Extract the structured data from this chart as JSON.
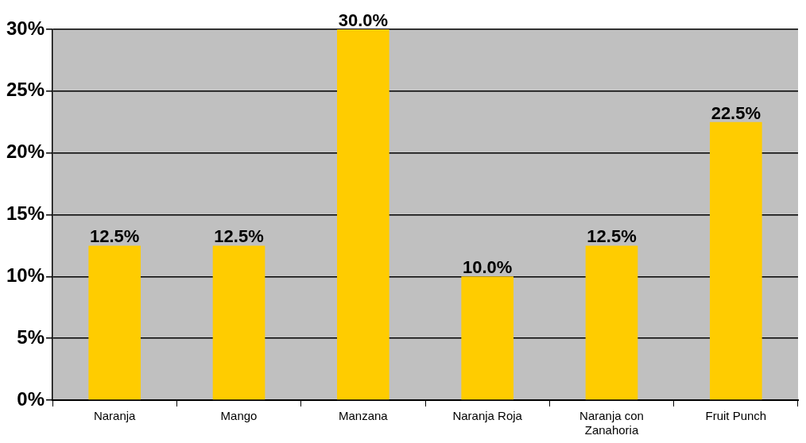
{
  "chart_data": {
    "type": "bar",
    "categories": [
      "Naranja",
      "Mango",
      "Manzana",
      "Naranja Roja",
      "Naranja con Zanahoria",
      "Fruit Punch"
    ],
    "values": [
      12.5,
      12.5,
      30.0,
      10.0,
      12.5,
      22.5
    ],
    "color": "#ffcc00",
    "value_labels": [
      "12.5%",
      "12.5%",
      "30.0%",
      "10.0%",
      "12.5%",
      "22.5%"
    ],
    "ylim": [
      0,
      30
    ],
    "yticks": [
      {
        "value": 0,
        "label": "0%"
      },
      {
        "value": 5,
        "label": "5%"
      },
      {
        "value": 10,
        "label": "10%"
      },
      {
        "value": 15,
        "label": "15%"
      },
      {
        "value": 20,
        "label": "20%"
      },
      {
        "value": 25,
        "label": "25%"
      },
      {
        "value": 30,
        "label": "30%"
      }
    ],
    "grid": "y"
  }
}
